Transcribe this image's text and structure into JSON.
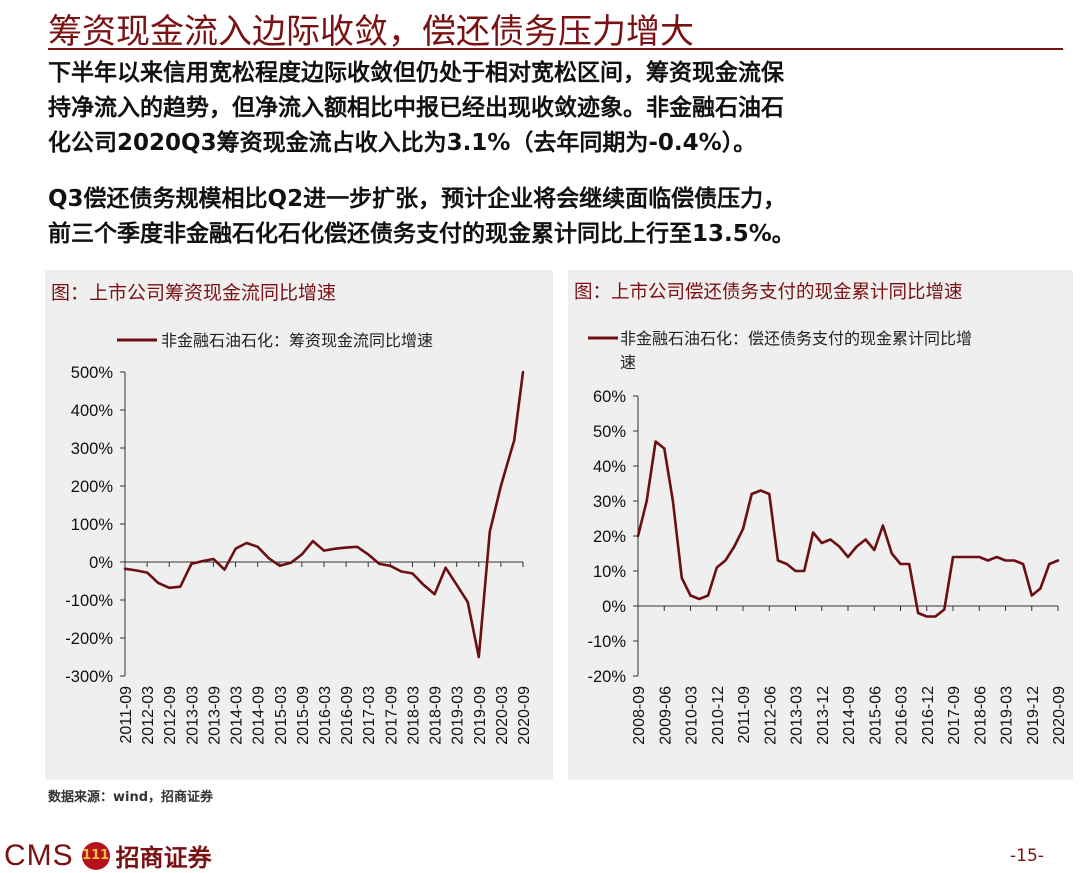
{
  "title": "筹资现金流入边际收敛，偿还债务压力增大",
  "paragraph1": {
    "line1": "下半年以来信用宽松程度边际收敛但仍处于相对宽松区间，筹资现金流保",
    "line2": "持净流入的趋势，但净流入额相比中报已经出现收敛迹象。非金融石油石",
    "line3": "化公司2020Q3筹资现金流占收入比为3.1%（去年同期为-0.4%）。"
  },
  "paragraph2": {
    "line1": "Q3偿还债务规模相比Q2进一步扩张，预计企业将会继续面临偿债压力，",
    "line2": "前三个季度非金融石化石化偿还债务支付的现金累计同比上行至13.5%。"
  },
  "source": "数据来源：wind，招商证券",
  "footer": {
    "cms": "CMS",
    "logo_mark": "111",
    "brand": "招商证券",
    "page": "-15-"
  },
  "colors": {
    "brand": "#7a1113",
    "series": "#6b0f12",
    "panel_bg": "#efefef"
  },
  "chart_data": [
    {
      "type": "line",
      "panel_title": "图：上市公司筹资现金流同比增速",
      "legend": "非金融石油石化：筹资现金流同比增速",
      "y_ticks": [
        "500%",
        "400%",
        "300%",
        "200%",
        "100%",
        "0%",
        "-100%",
        "-200%",
        "-300%"
      ],
      "ylim": [
        -300,
        500
      ],
      "x_ticks": [
        "2011-09",
        "2012-03",
        "2012-09",
        "2013-03",
        "2013-09",
        "2014-03",
        "2014-09",
        "2015-03",
        "2015-09",
        "2016-03",
        "2016-09",
        "2017-03",
        "2017-09",
        "2018-03",
        "2018-09",
        "2019-03",
        "2019-09",
        "2020-03",
        "2020-09"
      ],
      "series": [
        {
          "name": "非金融石油石化：筹资现金流同比增速",
          "x": [
            0,
            0.5,
            1,
            1.5,
            2,
            2.5,
            3,
            3.5,
            4,
            4.5,
            5,
            5.5,
            6,
            6.5,
            7,
            7.5,
            8,
            8.5,
            9,
            9.5,
            10,
            10.5,
            11,
            11.5,
            12,
            12.5,
            13,
            13.5,
            14,
            14.5,
            15,
            15.5,
            16,
            16.5,
            17,
            17.3,
            17.6,
            18
          ],
          "values": [
            -18,
            -22,
            -28,
            -55,
            -68,
            -65,
            -5,
            2,
            8,
            -20,
            35,
            50,
            40,
            10,
            -10,
            -2,
            20,
            55,
            30,
            35,
            38,
            40,
            20,
            -5,
            -10,
            -25,
            -30,
            -60,
            -85,
            -15,
            -60,
            -105,
            -250,
            80,
            200,
            260,
            320,
            500
          ]
        }
      ]
    },
    {
      "type": "line",
      "panel_title": "图：上市公司偿还债务支付的现金累计同比增速",
      "legend": "非金融石油石化：偿还债务支付的现金累计同比增速",
      "y_ticks": [
        "60%",
        "50%",
        "40%",
        "30%",
        "20%",
        "10%",
        "0%",
        "-10%",
        "-20%"
      ],
      "ylim": [
        -20,
        60
      ],
      "x_ticks": [
        "2008-09",
        "2009-06",
        "2010-03",
        "2010-12",
        "2011-09",
        "2012-06",
        "2013-03",
        "2013-12",
        "2014-09",
        "2015-06",
        "2016-03",
        "2016-12",
        "2017-09",
        "2018-06",
        "2019-03",
        "2019-12",
        "2020-09"
      ],
      "series": [
        {
          "name": "非金融石油石化：偿还债务支付的现金累计同比增速",
          "x": [
            0,
            0.33,
            0.67,
            1,
            1.33,
            1.67,
            2,
            2.33,
            2.67,
            3,
            3.33,
            3.67,
            4,
            4.33,
            4.67,
            5,
            5.33,
            5.67,
            6,
            6.33,
            6.67,
            7,
            7.33,
            7.67,
            8,
            8.33,
            8.67,
            9,
            9.33,
            9.67,
            10,
            10.33,
            10.67,
            11,
            11.33,
            11.67,
            12,
            12.33,
            12.67,
            13,
            13.33,
            13.67,
            14,
            14.33,
            14.67,
            15,
            15.33,
            15.67,
            16
          ],
          "values": [
            20,
            30,
            47,
            45,
            30,
            8,
            3,
            2,
            3,
            11,
            13,
            17,
            22,
            32,
            33,
            32,
            13,
            12,
            10,
            10,
            21,
            18,
            19,
            17,
            14,
            17,
            19,
            16,
            23,
            15,
            12,
            12,
            -2,
            -3,
            -3,
            -1,
            14,
            14,
            14,
            14,
            13,
            14,
            13,
            13,
            12,
            3,
            5,
            12,
            13
          ]
        }
      ]
    }
  ]
}
